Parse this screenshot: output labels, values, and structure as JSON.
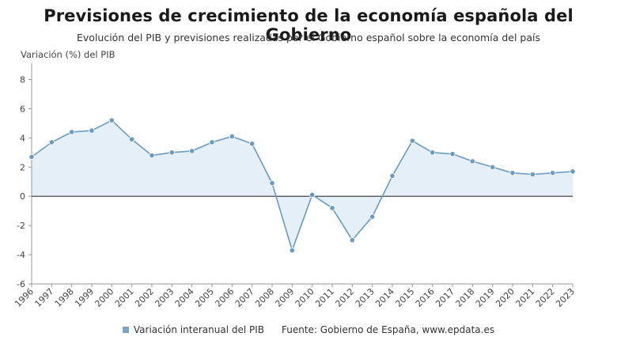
{
  "title": "Previsiones de crecimiento de la economía española del Gobierno",
  "subtitle": "Evolución del PIB y previsiones realizadas por el Gobierno español sobre la economía del país",
  "legend": {
    "series_label": "Variación interanual del PIB",
    "source": "Fuente: Gobierno de España, www.epdata.es"
  },
  "colors": {
    "line": "#6a9bc0",
    "fill": "#dce9f4",
    "marker": "#6a9bc0",
    "zero_line": "#333333",
    "grid_axis": "#999999"
  },
  "chart_data": {
    "type": "area",
    "title": "Previsiones de crecimiento de la economía española del Gobierno",
    "subtitle": "Evolución del PIB y previsiones realizadas por el Gobierno español sobre la economía del país",
    "xlabel": "",
    "ylabel": "Variación (%) del PIB",
    "ylim": [
      -6,
      9
    ],
    "yticks": [
      -6,
      -4,
      -2,
      0,
      2,
      4,
      6,
      8
    ],
    "grid": false,
    "legend_position": "bottom",
    "x": [
      "1996",
      "1997",
      "1998",
      "1999",
      "2000",
      "2001",
      "2002",
      "2003",
      "2004",
      "2005",
      "2006",
      "2007",
      "2008",
      "2009",
      "2010",
      "2011",
      "2012",
      "2013",
      "2014",
      "2015",
      "2016",
      "2017",
      "2018",
      "2019",
      "2020",
      "2021",
      "2022",
      "2023"
    ],
    "series": [
      {
        "name": "Variación interanual del PIB",
        "values": [
          2.7,
          3.7,
          4.4,
          4.5,
          5.2,
          3.9,
          2.8,
          3.0,
          3.1,
          3.7,
          4.1,
          3.6,
          0.9,
          -3.7,
          0.1,
          -0.8,
          -3.0,
          -1.4,
          1.4,
          3.8,
          3.0,
          2.9,
          2.4,
          2.0,
          1.6,
          1.5,
          1.6,
          1.7
        ]
      }
    ]
  }
}
